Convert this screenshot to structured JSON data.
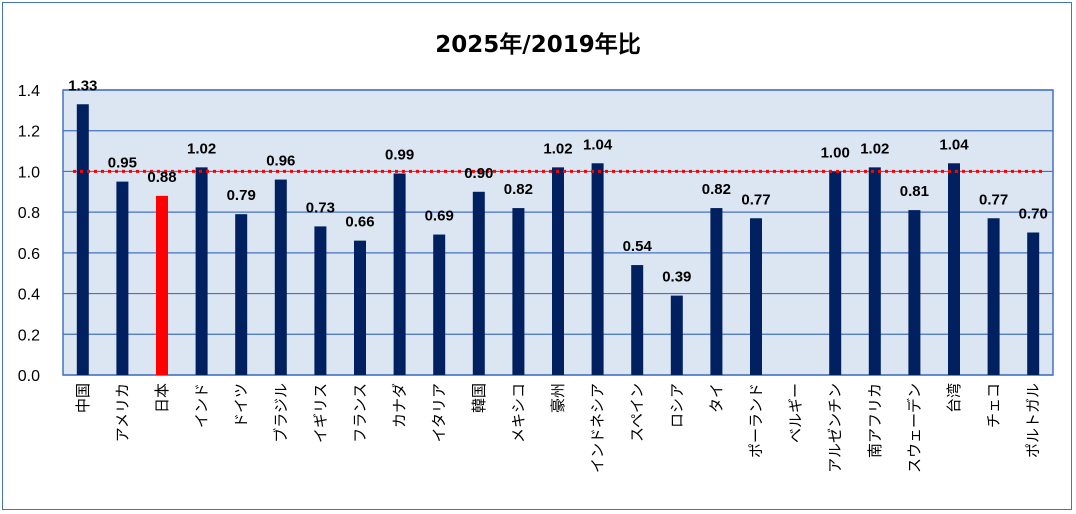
{
  "chart_data": {
    "type": "bar",
    "title": "2025年/2019年比",
    "xlabel": "",
    "ylabel": "",
    "ylim": [
      0,
      1.4
    ],
    "yticks": [
      "0.0",
      "0.2",
      "0.4",
      "0.6",
      "0.8",
      "1.0",
      "1.2",
      "1.4"
    ],
    "grid": true,
    "reference_line": {
      "value": 1.0,
      "style": "dotted",
      "color": "#ff0000"
    },
    "categories": [
      "中国",
      "アメリカ",
      "日本",
      "インド",
      "ドイツ",
      "ブラジル",
      "イギリス",
      "フランス",
      "カナダ",
      "イタリア",
      "韓国",
      "メキシコ",
      "豪州",
      "インドネシア",
      "スペイン",
      "ロシア",
      "タイ",
      "ポーランド",
      "ベルギー",
      "アルゼンチン",
      "南アフリカ",
      "スウェーデン",
      "台湾",
      "チェコ",
      "ポルトガル"
    ],
    "values": [
      1.33,
      0.95,
      0.88,
      1.02,
      0.79,
      0.96,
      0.73,
      0.66,
      0.99,
      0.69,
      0.9,
      0.82,
      1.02,
      1.04,
      0.54,
      0.39,
      0.82,
      0.77,
      null,
      1.0,
      1.02,
      0.81,
      1.04,
      0.77,
      0.7
    ],
    "labels": [
      "1.33",
      "0.95",
      "0.88",
      "1.02",
      "0.79",
      "0.96",
      "0.73",
      "0.66",
      "0.99",
      "0.69",
      "0.90",
      "0.82",
      "1.02",
      "1.04",
      "0.54",
      "0.39",
      "0.82",
      "0.77",
      "",
      "1.00",
      "1.02",
      "0.81",
      "1.04",
      "0.77",
      "0.70"
    ],
    "highlight_index": 2,
    "colors": {
      "bar": "#002060",
      "highlight": "#ff0000",
      "plot_bg": "#dce6f2",
      "grid": "#4472c4",
      "frame": "#4472c4"
    }
  }
}
